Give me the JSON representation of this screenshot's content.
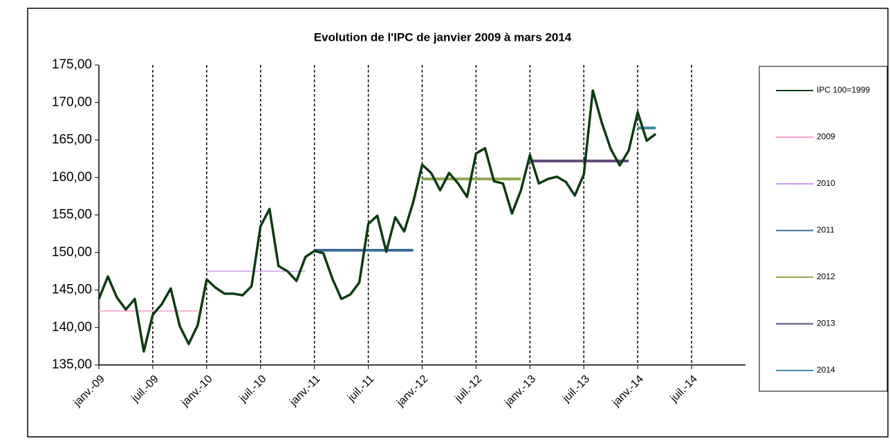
{
  "chart_data": {
    "type": "line",
    "title": "Evolution de l'IPC de janvier 2009 à mars 2014",
    "xlim": [
      "2009-01",
      "2015-01"
    ],
    "xticks": [
      {
        "value": "2009-01",
        "label": "janv.-09"
      },
      {
        "value": "2009-07",
        "label": "juil.-09"
      },
      {
        "value": "2010-01",
        "label": "janv.-10"
      },
      {
        "value": "2010-07",
        "label": "juil.-10"
      },
      {
        "value": "2011-01",
        "label": "janv.-11"
      },
      {
        "value": "2011-07",
        "label": "juil.-11"
      },
      {
        "value": "2012-01",
        "label": "janv.-12"
      },
      {
        "value": "2012-07",
        "label": "juil.-12"
      },
      {
        "value": "2013-01",
        "label": "janv.-13"
      },
      {
        "value": "2013-07",
        "label": "juil.-13"
      },
      {
        "value": "2014-01",
        "label": "janv.-14"
      },
      {
        "value": "2014-07",
        "label": "juil.-14"
      }
    ],
    "ylim": [
      135,
      175
    ],
    "yticks": [
      {
        "value": 135,
        "label": "135,00"
      },
      {
        "value": 140,
        "label": "140,00"
      },
      {
        "value": 145,
        "label": "145,00"
      },
      {
        "value": 150,
        "label": "150,00"
      },
      {
        "value": 155,
        "label": "155,00"
      },
      {
        "value": 160,
        "label": "160,00"
      },
      {
        "value": 165,
        "label": "165,00"
      },
      {
        "value": 170,
        "label": "170,00"
      },
      {
        "value": 175,
        "label": "175,00"
      }
    ],
    "grid": "x",
    "legend": "right",
    "series": [
      {
        "name": "IPC 100=1999",
        "color": "#0b3a12",
        "width": 3.5,
        "x": [
          "2009-01",
          "2009-02",
          "2009-03",
          "2009-04",
          "2009-05",
          "2009-06",
          "2009-07",
          "2009-08",
          "2009-09",
          "2009-10",
          "2009-11",
          "2009-12",
          "2010-01",
          "2010-02",
          "2010-03",
          "2010-04",
          "2010-05",
          "2010-06",
          "2010-07",
          "2010-08",
          "2010-09",
          "2010-10",
          "2010-11",
          "2010-12",
          "2011-01",
          "2011-02",
          "2011-03",
          "2011-04",
          "2011-05",
          "2011-06",
          "2011-07",
          "2011-08",
          "2011-09",
          "2011-10",
          "2011-11",
          "2011-12",
          "2012-01",
          "2012-02",
          "2012-03",
          "2012-04",
          "2012-05",
          "2012-06",
          "2012-07",
          "2012-08",
          "2012-09",
          "2012-10",
          "2012-11",
          "2012-12",
          "2013-01",
          "2013-02",
          "2013-03",
          "2013-04",
          "2013-05",
          "2013-06",
          "2013-07",
          "2013-08",
          "2013-09",
          "2013-10",
          "2013-11",
          "2013-12",
          "2014-01",
          "2014-02",
          "2014-03"
        ],
        "values": [
          143.8,
          146.8,
          144.0,
          142.4,
          143.8,
          136.8,
          141.7,
          143.1,
          145.2,
          140.2,
          137.8,
          140.3,
          146.4,
          145.3,
          144.5,
          144.5,
          144.3,
          145.5,
          153.5,
          155.8,
          148.2,
          147.5,
          146.2,
          149.4,
          150.2,
          149.9,
          146.5,
          143.8,
          144.4,
          146.0,
          153.8,
          154.9,
          150.1,
          154.7,
          152.8,
          156.7,
          161.7,
          160.6,
          158.3,
          160.6,
          159.2,
          157.4,
          163.2,
          163.9,
          159.5,
          159.2,
          155.2,
          158.3,
          163.0,
          159.2,
          159.8,
          160.1,
          159.4,
          157.6,
          160.4,
          171.6,
          167.3,
          163.8,
          161.6,
          163.6,
          168.7,
          164.9,
          165.8
        ]
      },
      {
        "name": "2009",
        "color": "#f59ac8",
        "width": 1.5,
        "x": [
          "2009-01",
          "2009-12"
        ],
        "values": [
          142.2,
          142.2
        ]
      },
      {
        "name": "2010",
        "color": "#c99cf0",
        "width": 1.5,
        "x": [
          "2010-01",
          "2010-12"
        ],
        "values": [
          147.5,
          147.5
        ]
      },
      {
        "name": "2011",
        "color": "#3b6a9c",
        "width": 4,
        "x": [
          "2011-01",
          "2011-12"
        ],
        "values": [
          150.3,
          150.3
        ]
      },
      {
        "name": "2012",
        "color": "#8fa64a",
        "width": 4,
        "x": [
          "2012-01",
          "2012-12"
        ],
        "values": [
          159.8,
          159.8
        ]
      },
      {
        "name": "2013",
        "color": "#5f4a7c",
        "width": 4,
        "x": [
          "2013-01",
          "2013-12"
        ],
        "values": [
          162.2,
          162.2
        ]
      },
      {
        "name": "2014",
        "color": "#3a8aa3",
        "width": 4,
        "x": [
          "2014-01",
          "2014-03"
        ],
        "values": [
          166.6,
          166.6
        ]
      }
    ]
  }
}
